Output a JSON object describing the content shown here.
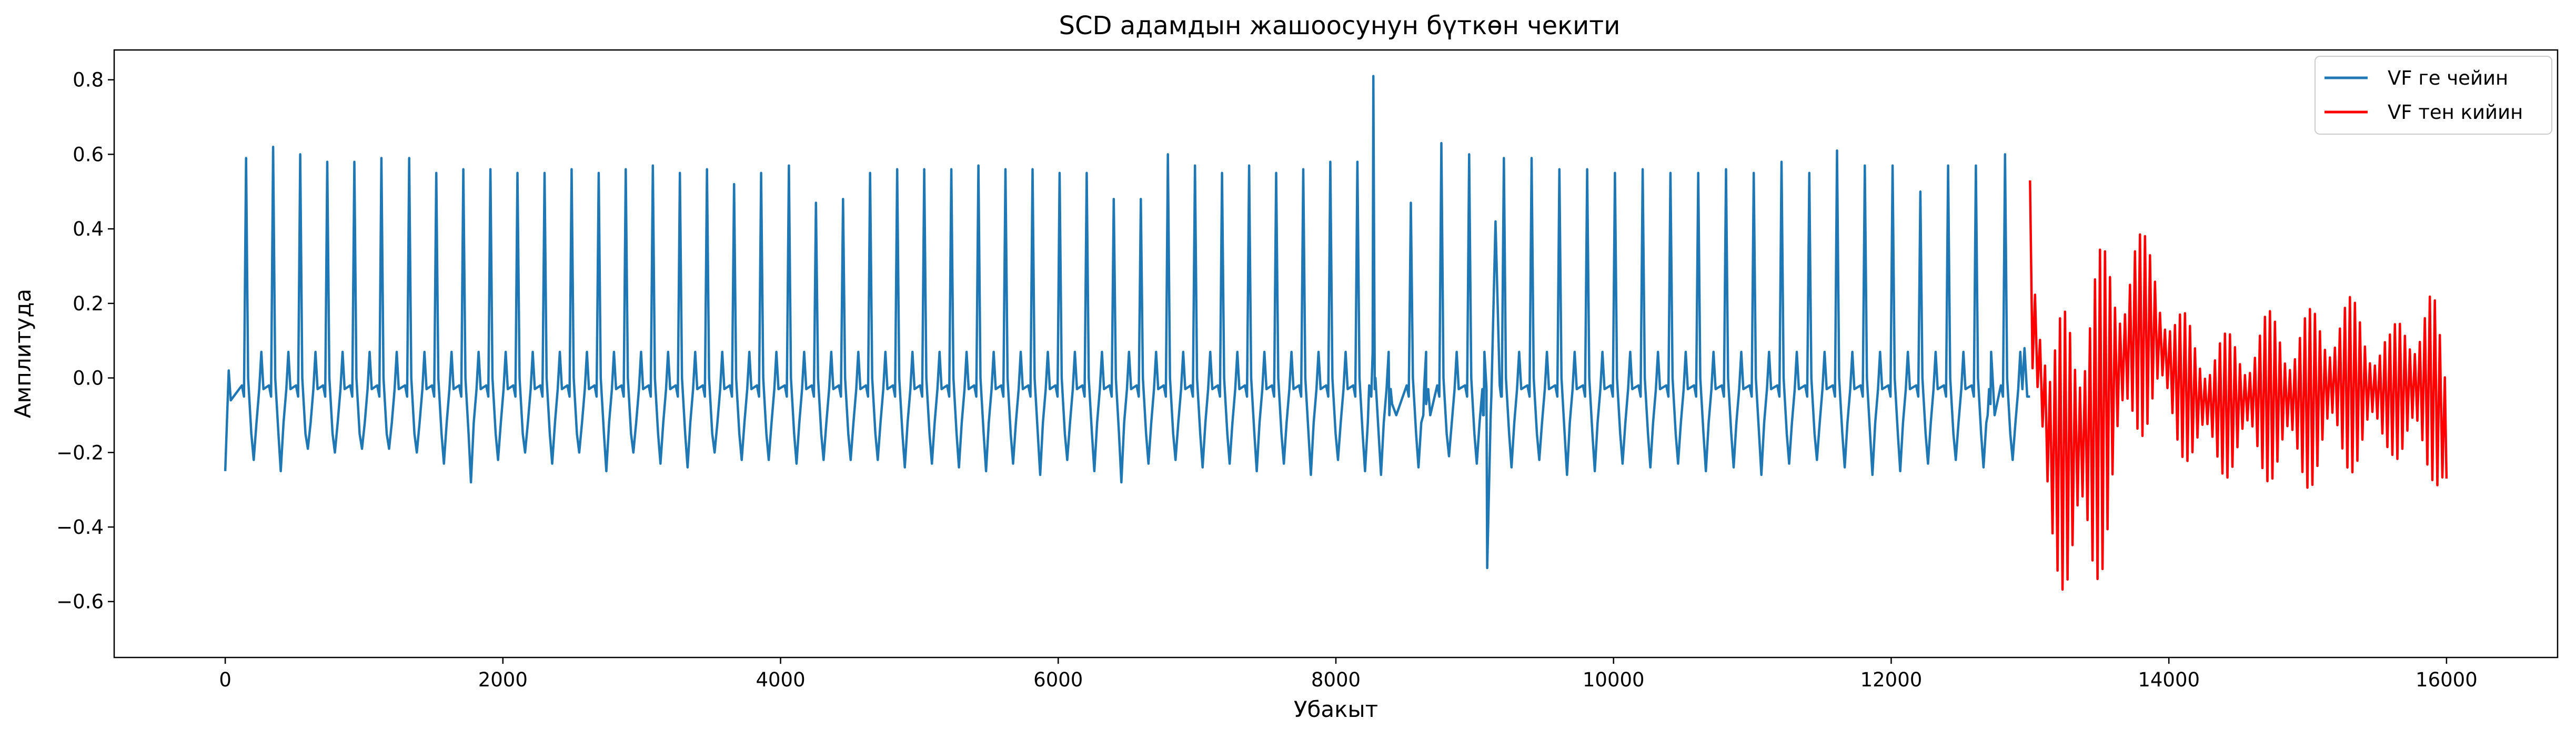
{
  "chart_data": {
    "type": "line",
    "title": "SCD адамдын жашоосунун бүткөн чекити",
    "xlabel": "Убакыт",
    "ylabel": "Амплитуда",
    "xlim": [
      -800,
      16800
    ],
    "ylim": [
      -0.75,
      0.88
    ],
    "xticks": [
      0,
      2000,
      4000,
      6000,
      8000,
      10000,
      12000,
      14000,
      16000
    ],
    "xtick_labels": [
      "0",
      "2000",
      "4000",
      "6000",
      "8000",
      "10000",
      "12000",
      "14000",
      "16000"
    ],
    "yticks": [
      -0.6,
      -0.4,
      -0.2,
      0.0,
      0.2,
      0.4,
      0.6,
      0.8
    ],
    "ytick_labels": [
      "−0.6",
      "−0.4",
      "−0.2",
      "0.0",
      "0.2",
      "0.4",
      "0.6",
      "0.8"
    ],
    "grid": false,
    "legend_position": "top-right",
    "series": [
      {
        "name": "VF ге чейин",
        "color": "#1f77b4",
        "x_range": [
          0,
          13000
        ],
        "baseline": -0.02,
        "beat_x": [
          150,
          345,
          540,
          735,
          930,
          1125,
          1325,
          1520,
          1715,
          1910,
          2105,
          2300,
          2495,
          2690,
          2885,
          3080,
          3275,
          3470,
          3665,
          3860,
          4060,
          4255,
          4450,
          4645,
          4840,
          5035,
          5230,
          5425,
          5620,
          5815,
          6010,
          6205,
          6400,
          6595,
          6790,
          6985,
          7180,
          7375,
          7570,
          7765,
          7960,
          8155,
          8270,
          8540,
          8760,
          8960,
          9210,
          9410,
          9610,
          9810,
          10010,
          10210,
          10410,
          10610,
          10810,
          11010,
          11210,
          11410,
          11610,
          11810,
          12010,
          12210,
          12410,
          12610,
          12820
        ],
        "peak_values": [
          0.59,
          0.62,
          0.6,
          0.58,
          0.58,
          0.59,
          0.59,
          0.55,
          0.56,
          0.56,
          0.55,
          0.55,
          0.56,
          0.55,
          0.56,
          0.57,
          0.55,
          0.56,
          0.52,
          0.55,
          0.57,
          0.47,
          0.48,
          0.55,
          0.56,
          0.56,
          0.56,
          0.57,
          0.56,
          0.56,
          0.55,
          0.55,
          0.48,
          0.48,
          0.6,
          0.57,
          0.55,
          0.57,
          0.55,
          0.56,
          0.58,
          0.58,
          0.81,
          0.47,
          0.63,
          0.6,
          0.59,
          0.59,
          0.56,
          0.56,
          0.55,
          0.56,
          0.55,
          0.55,
          0.56,
          0.55,
          0.58,
          0.55,
          0.61,
          0.57,
          0.57,
          0.5,
          0.57,
          0.57,
          0.6
        ],
        "trough_values": [
          -0.22,
          -0.25,
          -0.19,
          -0.2,
          -0.19,
          -0.19,
          -0.2,
          -0.23,
          -0.28,
          -0.22,
          -0.2,
          -0.23,
          -0.2,
          -0.25,
          -0.2,
          -0.23,
          -0.24,
          -0.2,
          -0.22,
          -0.22,
          -0.23,
          -0.22,
          -0.22,
          -0.22,
          -0.24,
          -0.23,
          -0.24,
          -0.25,
          -0.23,
          -0.26,
          -0.22,
          -0.25,
          -0.28,
          -0.23,
          -0.22,
          -0.24,
          -0.23,
          -0.25,
          -0.23,
          -0.26,
          -0.22,
          -0.25,
          -0.26,
          -0.24,
          -0.21,
          -0.23,
          -0.24,
          -0.22,
          -0.26,
          -0.25,
          -0.23,
          -0.24,
          -0.23,
          -0.25,
          -0.24,
          -0.26,
          -0.23,
          -0.22,
          -0.24,
          -0.26,
          -0.25,
          -0.23,
          -0.22,
          -0.24,
          -0.22
        ],
        "event_x": 9090,
        "event_min": -0.51,
        "event_max": 0.42
      },
      {
        "name": "VF тен кийин",
        "color": "#ff0000",
        "x_range": [
          13000,
          16000
        ],
        "start_value": 0.53,
        "segment_x": [
          13000,
          13150,
          13300,
          13450,
          13600,
          13750,
          13900,
          14050,
          14200,
          14400,
          14600,
          14800,
          15000,
          15200,
          15400,
          15600,
          15750,
          15900,
          16000
        ],
        "upper_envelope": [
          0.53,
          0.05,
          0.3,
          0.33,
          0.38,
          0.41,
          0.36,
          0.2,
          0.14,
          0.12,
          0.15,
          0.2,
          0.18,
          0.24,
          0.2,
          0.12,
          0.26,
          0.24,
          0.04
        ],
        "lower_envelope": [
          -0.1,
          -0.45,
          -0.68,
          -0.62,
          -0.4,
          -0.18,
          -0.12,
          -0.2,
          -0.25,
          -0.27,
          -0.25,
          -0.3,
          -0.3,
          -0.26,
          -0.25,
          -0.2,
          -0.3,
          -0.28,
          -0.32
        ],
        "end_value": -0.27
      }
    ]
  }
}
